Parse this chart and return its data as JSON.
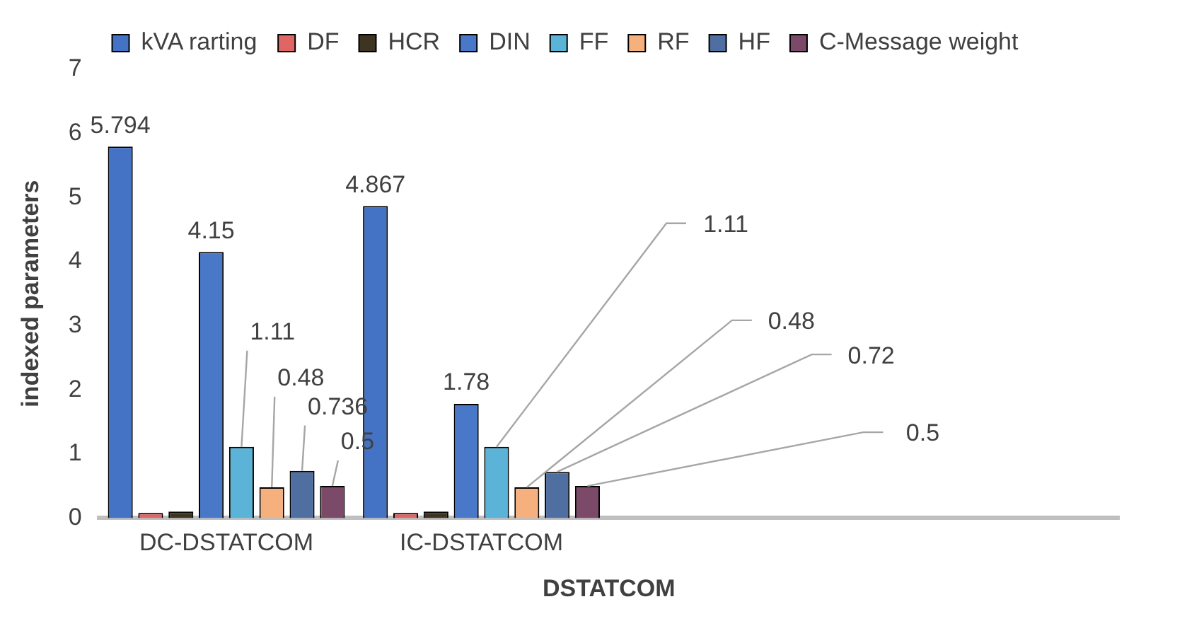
{
  "chart_data": {
    "type": "bar",
    "xlabel": "DSTATCOM",
    "ylabel": "indexed parameters",
    "categories": [
      "DC-DSTATCOM",
      "IC-DSTATCOM",
      null,
      null
    ],
    "series": [
      {
        "name": "kVA rarting",
        "color": "#4472c4",
        "values": [
          5.794,
          4.867,
          null,
          null
        ],
        "value_labels": [
          "5.794",
          "4.867",
          null,
          null
        ]
      },
      {
        "name": "DF",
        "color": "#e06666",
        "values": [
          0.08,
          0.08,
          null,
          null
        ]
      },
      {
        "name": "HCR",
        "color": "#3d3522",
        "values": [
          0.1,
          0.1,
          null,
          null
        ]
      },
      {
        "name": "DIN",
        "color": "#4a78c8",
        "values": [
          4.15,
          1.78,
          null,
          null
        ],
        "value_labels": [
          "4.15",
          "1.78",
          null,
          null
        ]
      },
      {
        "name": "FF",
        "color": "#5bb4d8",
        "values": [
          1.11,
          1.11,
          null,
          null
        ],
        "value_labels": [
          "1.11",
          "1.11",
          null,
          null
        ]
      },
      {
        "name": "RF",
        "color": "#f6b07e",
        "values": [
          0.48,
          0.48,
          null,
          null
        ],
        "value_labels": [
          "0.48",
          "0.48",
          null,
          null
        ]
      },
      {
        "name": "HF",
        "color": "#4f6fa0",
        "values": [
          0.736,
          0.72,
          null,
          null
        ],
        "value_labels": [
          "0.736",
          "0.72",
          null,
          null
        ]
      },
      {
        "name": "C-Message weight",
        "color": "#7b4a68",
        "values": [
          0.5,
          0.5,
          null,
          null
        ],
        "value_labels": [
          "0.5",
          "0.5",
          null,
          null
        ]
      }
    ],
    "ylim": [
      0,
      7
    ],
    "yticks": [
      0,
      1,
      2,
      3,
      4,
      5,
      6,
      7
    ],
    "grid": false,
    "legend": "top"
  }
}
